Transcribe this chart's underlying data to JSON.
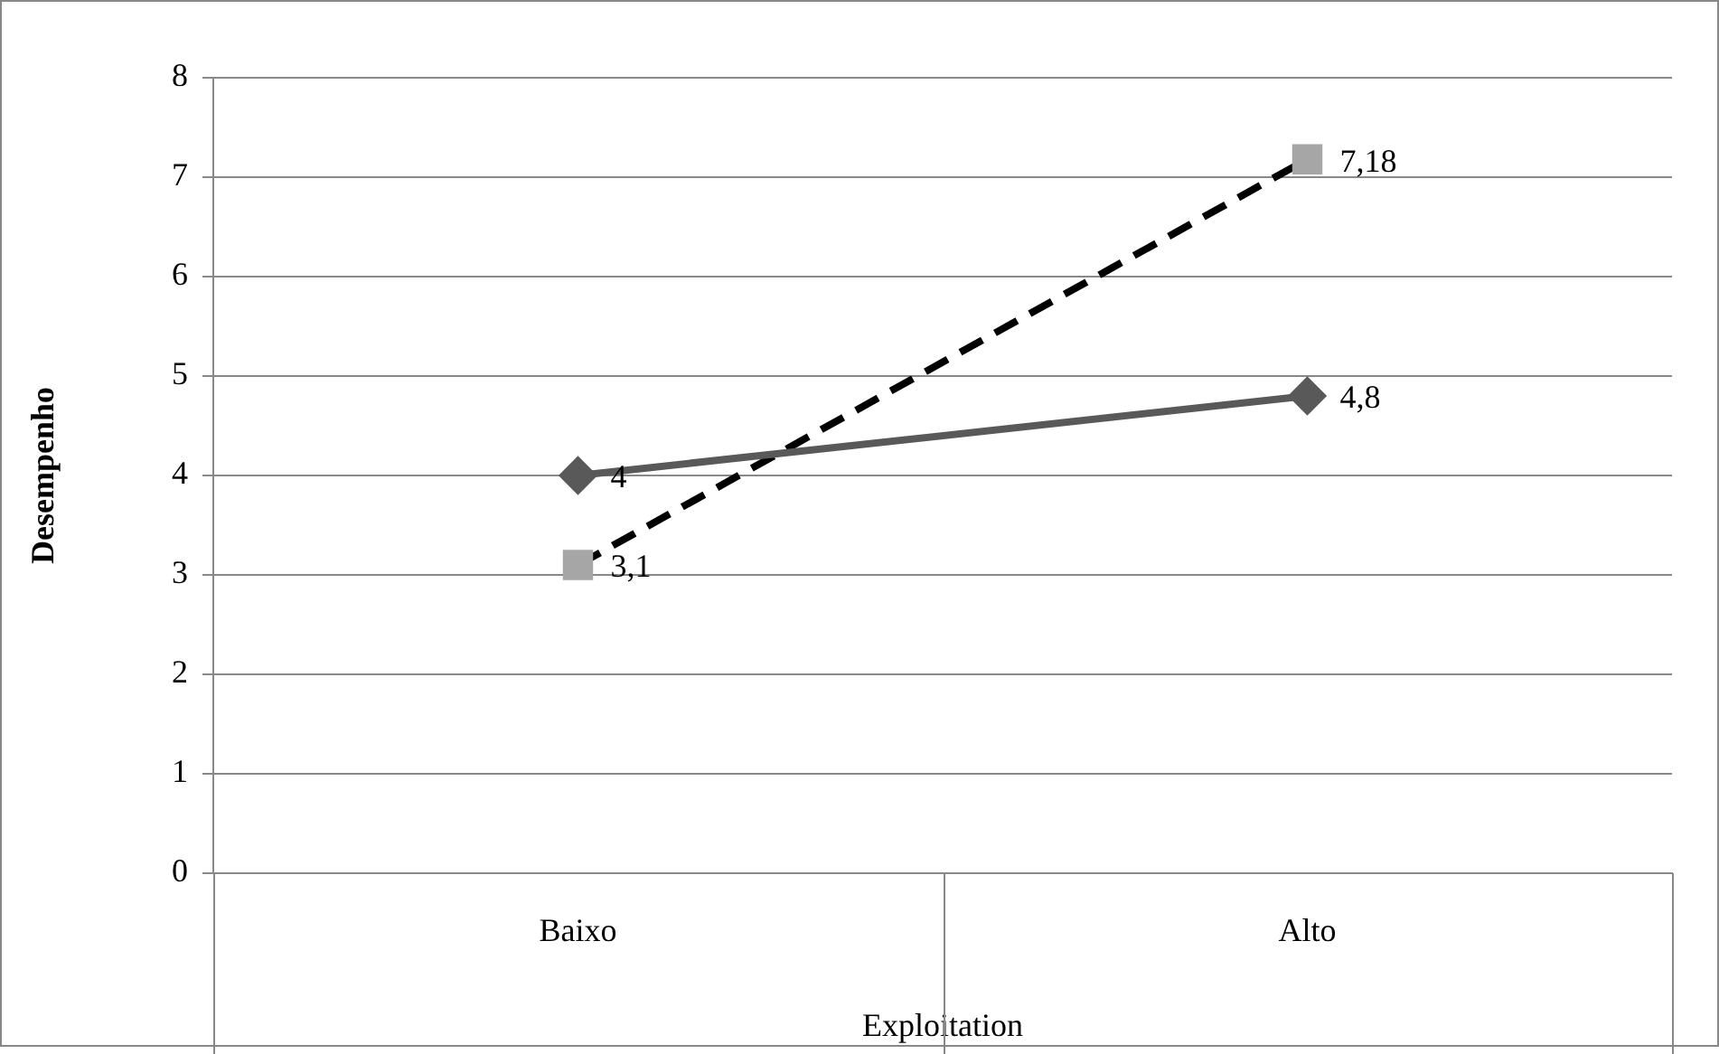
{
  "chart_data": {
    "type": "line",
    "xlabel": "Exploitation",
    "ylabel": "Desempenho",
    "categories": [
      "Baixo",
      "Alto"
    ],
    "series": [
      {
        "color": "#595959",
        "values": [
          4,
          4.8
        ],
        "value_labels": [
          "4",
          "4,8"
        ],
        "marker": "diamond",
        "line_style": "solid"
      },
      {
        "color": "#000000",
        "values": [
          3.1,
          7.18
        ],
        "value_labels": [
          "3,1",
          "7,18"
        ],
        "marker": "square",
        "line_style": "dashed"
      }
    ],
    "ylim": [
      0,
      8
    ],
    "yticks": [
      0,
      1,
      2,
      3,
      4,
      5,
      6,
      7,
      8
    ],
    "grid": "y",
    "legend": false
  }
}
